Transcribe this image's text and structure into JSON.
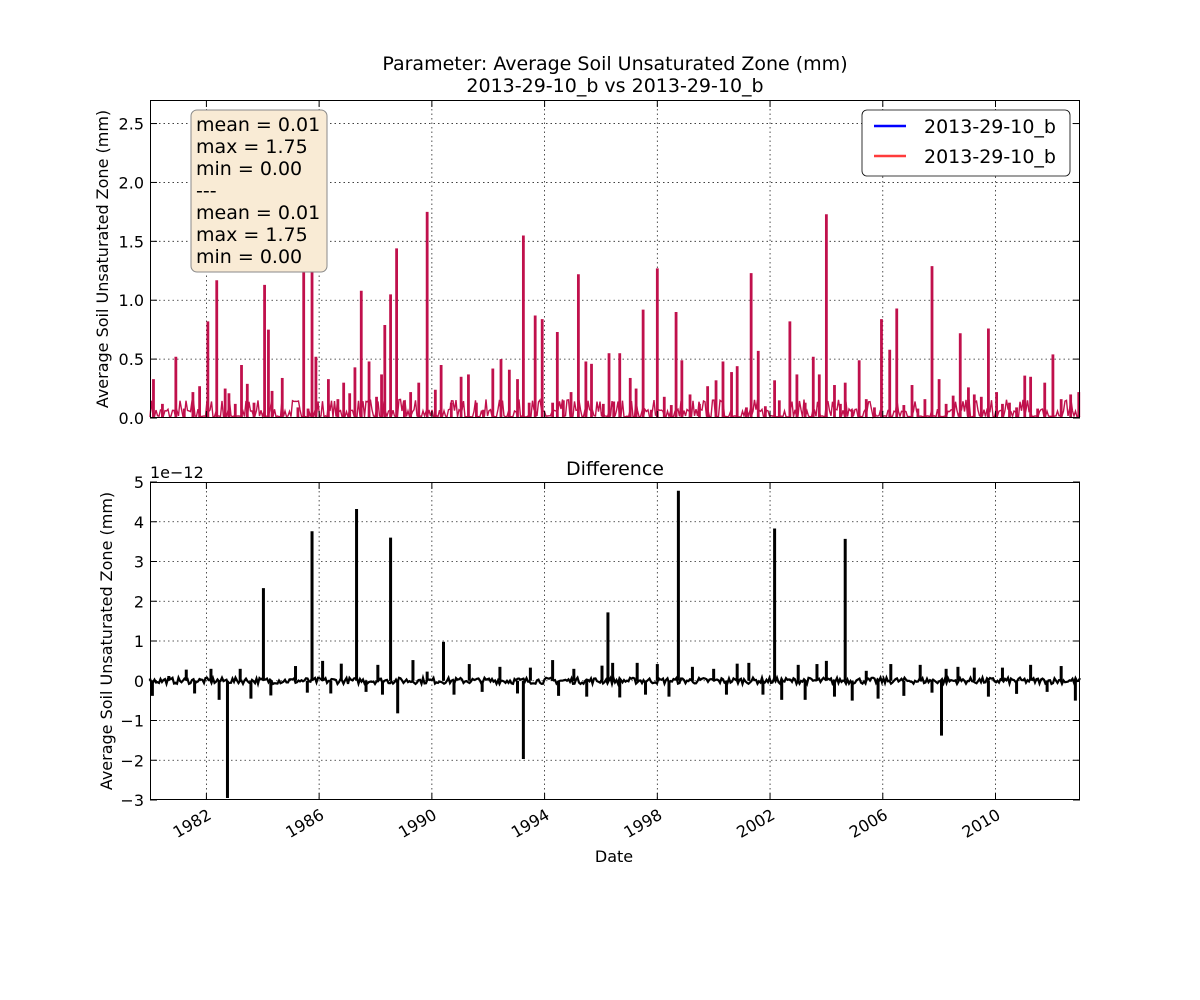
{
  "chart_data": [
    {
      "type": "line",
      "title": "Parameter: Average Soil Unsaturated Zone (mm)",
      "subtitle": "2013-29-10_b vs 2013-29-10_b",
      "xlabel": "",
      "ylabel": "Average Soil Unsaturated Zone (mm)",
      "xlim": [
        "1980-01-01",
        "2012-12-31"
      ],
      "ylim": [
        0.0,
        2.7
      ],
      "yticks": [
        0.0,
        0.5,
        1.0,
        1.5,
        2.0,
        2.5
      ],
      "ytick_labels": [
        "0.0",
        "0.5",
        "1.0",
        "1.5",
        "2.0",
        "2.5"
      ],
      "grid": true,
      "legend": "top-right",
      "series": [
        {
          "name": "2013-29-10_b",
          "color": "#0000ff"
        },
        {
          "name": "2013-29-10_b",
          "color": "#ff3b3b"
        }
      ],
      "overlap_color": "#c0104c",
      "peaks": {
        "x": [
          "1980-02-15",
          "1980-06-10",
          "1980-12-01",
          "1981-03-20",
          "1981-07-10",
          "1981-10-05",
          "1982-01-20",
          "1982-05-15",
          "1982-09-01",
          "1982-10-20",
          "1983-01-10",
          "1983-04-01",
          "1983-06-15",
          "1983-09-10",
          "1984-01-25",
          "1984-03-15",
          "1984-05-01",
          "1984-09-10",
          "1985-04-01",
          "1985-06-15",
          "1985-08-10",
          "1985-10-01",
          "1985-11-20",
          "1986-05-01",
          "1986-09-01",
          "1986-11-15",
          "1987-02-01",
          "1987-04-10",
          "1987-07-01",
          "1987-10-10",
          "1988-01-15",
          "1988-03-20",
          "1988-05-01",
          "1988-07-15",
          "1988-10-01",
          "1989-01-10",
          "1989-04-01",
          "1989-07-15",
          "1989-11-01",
          "1990-02-15",
          "1990-05-01",
          "1990-09-10",
          "1991-01-15",
          "1991-04-20",
          "1991-08-01",
          "1991-11-01",
          "1992-03-01",
          "1992-06-15",
          "1992-10-01",
          "1993-01-15",
          "1993-04-01",
          "1993-06-15",
          "1993-09-01",
          "1993-12-01",
          "1994-04-15",
          "1994-06-15",
          "1994-09-01",
          "1994-12-10",
          "1995-03-15",
          "1995-06-20",
          "1995-09-01",
          "1996-02-01",
          "1996-04-15",
          "1996-06-15",
          "1996-09-01",
          "1997-01-15",
          "1997-04-01",
          "1997-07-01",
          "1997-10-15",
          "1998-01-01",
          "1998-04-01",
          "1998-07-01",
          "1998-09-01",
          "1998-11-15",
          "1999-03-01",
          "1999-07-01",
          "1999-10-15",
          "2000-02-01",
          "2000-05-01",
          "2000-08-20",
          "2000-11-01",
          "2001-03-01",
          "2001-05-01",
          "2001-08-01",
          "2001-11-01",
          "2002-03-01",
          "2002-05-01",
          "2002-09-15",
          "2002-12-15",
          "2003-04-01",
          "2003-07-15",
          "2003-10-01",
          "2004-01-01",
          "2004-04-15",
          "2004-07-01",
          "2004-09-01",
          "2004-12-01",
          "2005-03-01",
          "2005-06-01",
          "2005-09-15",
          "2005-12-15",
          "2006-04-01",
          "2006-07-01",
          "2006-10-01",
          "2007-01-15",
          "2007-04-01",
          "2007-07-01",
          "2007-10-01",
          "2008-01-01",
          "2008-04-01",
          "2008-07-01",
          "2008-10-01",
          "2009-01-15",
          "2009-04-01",
          "2009-07-01",
          "2009-10-01",
          "2010-01-15",
          "2010-04-01",
          "2010-07-01",
          "2010-10-01",
          "2011-01-15",
          "2011-04-01",
          "2011-07-01",
          "2011-10-01",
          "2012-01-15",
          "2012-05-01",
          "2012-09-01",
          "2012-12-15"
        ],
        "y": [
          0.33,
          0.12,
          0.52,
          0.08,
          0.22,
          0.27,
          0.82,
          1.17,
          0.25,
          0.21,
          0.12,
          0.45,
          0.29,
          0.13,
          1.13,
          0.75,
          0.23,
          0.34,
          0.09,
          1.73,
          0.08,
          1.65,
          0.52,
          0.33,
          0.16,
          0.3,
          0.21,
          0.43,
          1.08,
          0.48,
          0.18,
          0.37,
          0.79,
          1.05,
          1.44,
          0.15,
          0.22,
          0.3,
          1.75,
          0.24,
          0.45,
          0.13,
          0.35,
          0.37,
          0.13,
          0.07,
          0.42,
          0.5,
          0.41,
          0.33,
          1.55,
          0.13,
          0.87,
          0.84,
          0.13,
          0.73,
          0.15,
          0.22,
          1.22,
          0.48,
          0.46,
          0.12,
          0.55,
          0.14,
          0.55,
          0.34,
          0.25,
          0.92,
          0.07,
          1.27,
          0.18,
          0.11,
          0.9,
          0.49,
          0.2,
          0.12,
          0.27,
          0.32,
          0.48,
          0.39,
          0.44,
          0.09,
          1.23,
          0.57,
          0.1,
          0.32,
          0.15,
          0.82,
          0.37,
          0.13,
          0.52,
          0.37,
          1.73,
          0.28,
          0.12,
          0.3,
          0.07,
          0.49,
          0.16,
          0.09,
          0.84,
          0.58,
          0.93,
          0.11,
          0.28,
          0.08,
          0.16,
          1.29,
          0.33,
          0.12,
          0.19,
          0.72,
          0.26,
          0.2,
          0.18,
          0.76,
          0.22,
          0.12,
          0.13,
          0.09,
          0.36,
          0.35,
          0.08,
          0.3,
          0.54,
          0.16,
          0.2,
          0.22
        ]
      },
      "stats_box": {
        "lines": [
          "mean = 0.01",
          "max = 1.75",
          "min = 0.00",
          "---",
          "mean = 0.01",
          "max = 1.75",
          "min = 0.00"
        ],
        "fill": "#f9ebd5",
        "border": "#8a8a8a"
      }
    },
    {
      "type": "line",
      "title": "Difference",
      "xlabel": "Date",
      "ylabel": "Average Soil Unsaturated Zone (mm)",
      "scale_label": "1e−12",
      "xlim": [
        "1980-01-01",
        "2012-12-31"
      ],
      "ylim": [
        -3,
        5
      ],
      "yticks": [
        -3,
        -2,
        -1,
        0,
        1,
        2,
        3,
        4,
        5
      ],
      "ytick_labels": [
        "−3",
        "−2",
        "−1",
        "0",
        "1",
        "2",
        "3",
        "4",
        "5"
      ],
      "xticks": [
        "1982-01-01",
        "1986-01-01",
        "1990-01-01",
        "1994-01-01",
        "1998-01-01",
        "2002-01-01",
        "2006-01-01",
        "2010-01-01"
      ],
      "xtick_labels": [
        "1982",
        "1986",
        "1990",
        "1994",
        "1998",
        "2002",
        "2006",
        "2010"
      ],
      "grid": true,
      "series": [
        {
          "name": "",
          "color": "#000000"
        }
      ],
      "spikes": {
        "x": [
          "1980-02-01",
          "1980-09-01",
          "1981-04-15",
          "1981-08-01",
          "1982-03-01",
          "1982-06-15",
          "1982-10-01",
          "1983-03-15",
          "1983-08-01",
          "1984-01-10",
          "1984-04-15",
          "1985-03-01",
          "1985-08-01",
          "1985-10-01",
          "1986-02-15",
          "1986-06-01",
          "1986-10-15",
          "1987-05-01",
          "1987-09-01",
          "1988-02-01",
          "1988-04-01",
          "1988-07-15",
          "1988-10-15",
          "1989-05-01",
          "1989-11-01",
          "1990-06-01",
          "1990-10-15",
          "1991-05-01",
          "1991-10-15",
          "1992-06-01",
          "1993-01-15",
          "1993-04-01",
          "1993-07-01",
          "1994-04-15",
          "1994-07-01",
          "1995-01-15",
          "1995-07-01",
          "1996-01-15",
          "1996-04-01",
          "1996-06-01",
          "1996-09-01",
          "1997-04-15",
          "1997-08-01",
          "1998-01-01",
          "1998-06-01",
          "1998-10-01",
          "1999-04-01",
          "2000-01-01",
          "2000-06-15",
          "2000-11-01",
          "2001-04-01",
          "2001-10-01",
          "2002-03-01",
          "2002-06-01",
          "2003-01-01",
          "2003-04-01",
          "2003-09-01",
          "2004-01-01",
          "2004-04-15",
          "2004-09-01",
          "2004-12-01",
          "2005-06-01",
          "2005-11-01",
          "2006-04-15",
          "2006-10-01",
          "2007-05-01",
          "2007-10-01",
          "2008-02-01",
          "2008-04-01",
          "2008-09-01",
          "2009-04-01",
          "2009-10-01",
          "2010-04-01",
          "2010-10-01",
          "2011-04-01",
          "2011-11-01",
          "2012-05-01",
          "2012-11-01"
        ],
        "y": [
          -0.38,
          0.12,
          0.28,
          -0.32,
          0.3,
          -0.48,
          -2.95,
          0.3,
          -0.45,
          2.33,
          -0.37,
          0.37,
          -0.3,
          3.76,
          0.5,
          -0.32,
          0.43,
          4.32,
          -0.28,
          0.4,
          -0.35,
          3.6,
          -0.82,
          0.52,
          0.23,
          0.98,
          -0.35,
          0.42,
          -0.28,
          0.35,
          -0.32,
          -1.97,
          0.33,
          0.52,
          -0.38,
          0.3,
          -0.4,
          0.38,
          1.72,
          0.45,
          -0.42,
          0.45,
          -0.35,
          0.42,
          -0.4,
          4.78,
          0.35,
          0.3,
          -0.35,
          0.43,
          0.45,
          -0.35,
          3.83,
          -0.48,
          0.4,
          -0.48,
          0.42,
          0.5,
          -0.4,
          3.57,
          -0.5,
          0.25,
          -0.45,
          0.42,
          -0.38,
          0.4,
          -0.3,
          -1.38,
          0.3,
          0.35,
          0.33,
          -0.4,
          0.33,
          -0.33,
          0.4,
          -0.28,
          0.37,
          -0.5
        ]
      }
    }
  ]
}
